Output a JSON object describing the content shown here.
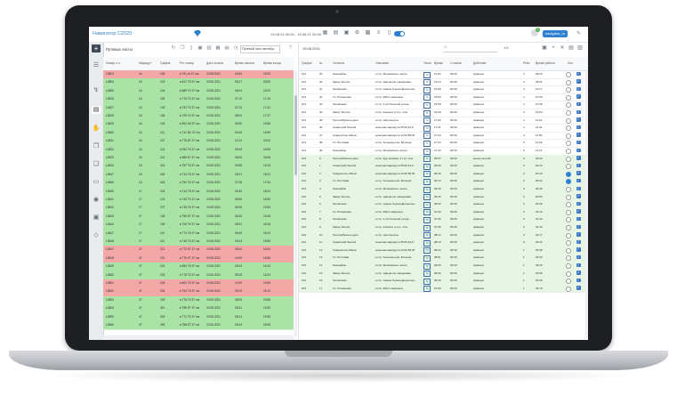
{
  "app": {
    "title": "Навигатор С2020",
    "dates": "19.08.21 00:00 - 19.08.21 00:00",
    "user": "navigator_ru",
    "notification_count": "3"
  },
  "left_panel": {
    "title": "Путевые листы",
    "route_select": "Путевой лист автобус",
    "columns": [
      "Номер п.л.",
      "Маршрут",
      "График",
      "Рег. номер",
      "Дата начала",
      "Время начала",
      "Время конца"
    ],
    "rows": [
      {
        "c": [
          "L0823",
          "16",
          "105",
          "в 791 хк 37 rus",
          "19.08.2021",
          "04:54",
          "15:29"
        ],
        "s": "r"
      },
      {
        "c": [
          "L0854",
          "16",
          "103",
          "в 817 ТК 37 rus",
          "19.08.2021",
          "06:27",
          "09:52"
        ],
        "s": "g"
      },
      {
        "c": [
          "L0865",
          "16",
          "104",
          "в 689 ТК 37 rus",
          "19.08.2021",
          "06:04",
          "15:29"
        ],
        "s": "g"
      },
      {
        "c": [
          "L0826",
          "16",
          "105",
          "в 776 ТК 37 rus",
          "19.08.2021",
          "07:12",
          "17:16"
        ],
        "s": "g"
      },
      {
        "c": [
          "L0827",
          "16",
          "106",
          "в 751 ТК 37 rus",
          "19.08.2021",
          "07:23",
          "17:41"
        ],
        "s": "g"
      },
      {
        "c": [
          "L0828",
          "16",
          "108",
          "в 709 ТК 37 rus",
          "19.08.2021",
          "08:00",
          "17:37"
        ],
        "s": "g"
      },
      {
        "c": [
          "L0829",
          "16",
          "109",
          "в 803 ХК 37 rus",
          "19.08.2021",
          "05:50",
          "15:58"
        ],
        "s": "g"
      },
      {
        "c": [
          "L0850",
          "16",
          "111",
          "в 741 ВС 37 rus",
          "19.08.2021",
          "03:49",
          "15:59"
        ],
        "s": "g"
      },
      {
        "c": [
          "L0831",
          "16",
          "112",
          "в 776 АТ 37 rus",
          "19.08.2021",
          "11:24",
          "22:00"
        ],
        "s": "g"
      },
      {
        "c": [
          "L0832",
          "16",
          "113",
          "в 934 ТК 37 rus",
          "19.08.2021",
          "05:43",
          "15:45"
        ],
        "s": "g"
      },
      {
        "c": [
          "L0833",
          "16",
          "114",
          "в 865 КТ 37 rus",
          "19.08.2021",
          "06:06",
          "16:06"
        ],
        "s": "g"
      },
      {
        "c": [
          "L0844",
          "16",
          "401",
          "в 787 ТК 37 rus",
          "19.08.2021",
          "05:58",
          "15:15"
        ],
        "s": "g"
      },
      {
        "c": [
          "L0847",
          "16",
          "402",
          "в 734 ТК 37 rus",
          "19.08.2021",
          "05:21",
          "15:21"
        ],
        "s": "g"
      },
      {
        "c": [
          "L0856",
          "16",
          "403",
          "в 781 ТК 37 rus",
          "19.08.2021",
          "07:45",
          "17:54"
        ],
        "s": "g"
      },
      {
        "c": [
          "L0840",
          "17",
          "103",
          "в 714 ТК 37 rus",
          "19.08.2021",
          "06:40",
          "16:34"
        ],
        "s": "g"
      },
      {
        "c": [
          "L0841",
          "17",
          "104",
          "в 745 ТК 37 rus",
          "19.08.2021",
          "05:53",
          "15:53"
        ],
        "s": "g"
      },
      {
        "c": [
          "L0842",
          "17",
          "107",
          "в 745 ТК 37 rus",
          "19.08.2021",
          "05:35",
          "15:35"
        ],
        "s": "g"
      },
      {
        "c": [
          "L0843",
          "17",
          "108",
          "в 755 КТ 37 rus",
          "19.08.2021",
          "05:45",
          "15:45"
        ],
        "s": "g"
      },
      {
        "c": [
          "L0844",
          "17",
          "109",
          "в 706 ТК 37 rus",
          "19.08.2021",
          "05:22",
          "16:16"
        ],
        "s": "g"
      },
      {
        "c": [
          "L0847",
          "17",
          "110",
          "в 774 ТК 37 rus",
          "19.08.2021",
          "06:49",
          "16:19"
        ],
        "s": "g"
      },
      {
        "c": [
          "L0848",
          "17",
          "111",
          "в 745 ТК 37 rus",
          "19.08.2021",
          "05:34",
          "15:58"
        ],
        "s": "g"
      },
      {
        "c": [
          "L0847",
          "37",
          "201",
          "в 772 КТ 37 rus",
          "19.08.2021",
          "05:44",
          "15:44"
        ],
        "s": "r"
      },
      {
        "c": [
          "L0848",
          "37",
          "201",
          "в 776 КТ 37 rus",
          "19.08.2021",
          "14:09",
          "15:55"
        ],
        "s": "r"
      },
      {
        "c": [
          "L0849",
          "37",
          "202",
          "в 694 ТК 37 rus",
          "19.08.2021",
          "05:44",
          "16:43"
        ],
        "s": "g"
      },
      {
        "c": [
          "L0850",
          "37",
          "203",
          "в 778 ТК 37 rus",
          "19.08.2021",
          "05:29",
          "16:29"
        ],
        "s": "g"
      },
      {
        "c": [
          "L0851",
          "47",
          "203",
          "в 800 ТК 37 rus",
          "19.08.2021",
          "14:09",
          "15:55"
        ],
        "s": "r"
      },
      {
        "c": [
          "L0852",
          "47",
          "204",
          "в 754 ТК 37 rus",
          "19.08.2021",
          "05:29",
          "16:10"
        ],
        "s": "r"
      },
      {
        "c": [
          "L0853",
          "47",
          "205",
          "в 776 ТК 37 rus",
          "19.08.2021",
          "05:08",
          "15:55"
        ],
        "s": "g"
      },
      {
        "c": [
          "L0854",
          "47",
          "310",
          "в 785 КТ 37 rus",
          "19.08.2021",
          "05:31",
          "14:55"
        ],
        "s": "g"
      },
      {
        "c": [
          "L0855",
          "47",
          "303",
          "в 771 ТК 37 rus",
          "19.08.2021",
          "06:14",
          "15:35"
        ],
        "s": "g"
      },
      {
        "c": [
          "L0856",
          "47",
          "305",
          "в 768 КТ 37 rus",
          "19.08.2021",
          "05:43",
          "16:08"
        ],
        "s": "g"
      }
    ]
  },
  "right_panel": {
    "date": "19.08.2021",
    "search_placeholder": "ID",
    "pager": "1/4",
    "columns": [
      "График",
      "№",
      "Останов",
      "Описание",
      "Точка",
      "Время",
      "Стоянка",
      "Действие",
      "Рейс",
      "Время работы",
      "Кон"
    ],
    "rows": [
      {
        "c": [
          "101",
          "39",
          "Никорайон",
          "в стр. Московского шоссе",
          "ТК",
          "11:20",
          "00:00",
          "разворот",
          "4",
          "09:29"
        ],
        "g": false,
        "ck": true
      },
      {
        "c": [
          "101",
          "40",
          "Завод Теплиц",
          "в стр. завода им. Невдовова",
          "ТК",
          "12:13",
          "00:00",
          "разворот",
          "4",
          "09:51"
        ],
        "g": false,
        "ck": true
      },
      {
        "c": [
          "101",
          "41",
          "Автовокзал",
          "в стр. сквера Героев Десантных",
          "ТК",
          "12:59",
          "00:00",
          "разворот",
          "4",
          "10:17"
        ],
        "g": false,
        "ck": true
      },
      {
        "c": [
          "101",
          "42",
          "Ул. Планерная",
          "в стр. 909-го квартала",
          "ТК",
          "15:54",
          "00:00",
          "разворот",
          "4",
          "10:39"
        ],
        "g": false,
        "ck": true
      },
      {
        "c": [
          "101",
          "43",
          "Автовокзал",
          "в стр. 1-ой Угольной улицы",
          "ТК",
          "15:58",
          "00:00",
          "разворот",
          "4",
          "10:48"
        ],
        "g": false,
        "ck": true
      },
      {
        "c": [
          "101",
          "44",
          "Завод Теплиц",
          "в стр. вокзала, в стр. гиль",
          "ТК",
          "16:49",
          "00:00",
          "разворот",
          "4",
          "10:53"
        ],
        "g": false,
        "ck": true
      },
      {
        "c": [
          "101",
          "45",
          "Троллейбусное депо",
          "в стр. Неполнорты",
          "ТК",
          "17:02",
          "00:00",
          "разворот",
          "4",
          "11:21"
        ],
        "g": false,
        "ck": true
      },
      {
        "c": [
          "101",
          "46",
          "Санаторий Лесной",
          "конечная маршрута 55,55,44,9",
          "ТК",
          "17:21",
          "00:00",
          "разворот",
          "4",
          "11:43"
        ],
        "g": false,
        "ck": true
      },
      {
        "c": [
          "101",
          "47",
          "Северостан.-Магис",
          "конечная маршрута 14,52,58,45",
          "ТК",
          "17:04",
          "00:00",
          "разворот",
          "4",
          "11:50"
        ],
        "g": false,
        "ck": true
      },
      {
        "c": [
          "101",
          "48",
          "Ул. Почтовая",
          "в стр. больницы им. Ботнина",
          "ТК",
          "17:34",
          "00:00",
          "разворот",
          "5",
          "12:02"
        ],
        "g": false,
        "ck": true
      },
      {
        "c": [
          "101",
          "49",
          "Никорайон",
          "в стр. Московского шоссе",
          "ТК",
          "17:43",
          "00:00",
          "разворот",
          "5",
          "13:11"
        ],
        "g": false,
        "ck": true
      },
      {
        "c": [
          "102",
          "0",
          "Троллейбусное депо",
          "в стр. 3(д) вокзала, в стр. гиль",
          "ТК",
          "05:57",
          "00:00",
          "выезд на рейс",
          "0",
          "00:00"
        ],
        "g": true,
        "ck": true
      },
      {
        "c": [
          "102",
          "1",
          "Санаторий Лесной",
          "конечная маршрута 55,55,44,9",
          "ТК",
          "06:09",
          "00:00",
          "разворот",
          "0",
          "00:16"
        ],
        "g": true,
        "ck": true
      },
      {
        "c": [
          "102",
          "2",
          "Северостан.-Магис",
          "конечная маршрута 14,52,58,45",
          "ТК",
          "06:09",
          "00:00",
          "разворот",
          "0",
          "00:16"
        ],
        "g": true,
        "ck": true
      },
      {
        "c": [
          "102",
          "3",
          "Ул. Почтовая",
          "в стр. больницы им. Ботнина",
          "ТК",
          "06:13",
          "00:00",
          "разворот",
          "0",
          "00:24"
        ],
        "g": true,
        "ck": true
      },
      {
        "c": [
          "102",
          "4",
          "Никорайон",
          "в стр. Московского шоссе",
          "ТК",
          "06:20",
          "00:00",
          "разворот",
          "0",
          "00:36"
        ],
        "g": true,
        "ck": true
      },
      {
        "c": [
          "102",
          "5",
          "Завод Теплиц",
          "в стр. завода им. Невдовова",
          "ТК",
          "06:26",
          "00:00",
          "разворот",
          "0",
          "00:54"
        ],
        "g": true,
        "ck": true
      },
      {
        "c": [
          "102",
          "6",
          "Автовокзал",
          "в стр. сквера Героев Десантных",
          "ТК",
          "06:53",
          "00:00",
          "разворот",
          "0",
          "01:06"
        ],
        "g": true,
        "ck": true
      },
      {
        "c": [
          "102",
          "7",
          "Ул. Планерная",
          "в стр. 909-го квартала",
          "ТК",
          "07:00",
          "00:00",
          "разворот",
          "0",
          "01:16"
        ],
        "g": true,
        "ck": true
      },
      {
        "c": [
          "102",
          "8",
          "Автовокзал",
          "в стр. 1-ой Угольной улицы",
          "ТК",
          "07:26",
          "00:00",
          "разворот",
          "0",
          "01:34"
        ],
        "g": true,
        "ck": true
      },
      {
        "c": [
          "102",
          "9",
          "Завод Теплиц",
          "в стр. вокзала, в стр. гиль",
          "ТК",
          "07:35",
          "00:00",
          "разворот",
          "0",
          "01:44"
        ],
        "g": true,
        "ck": true
      },
      {
        "c": [
          "102",
          "10",
          "Троллейбусное депо",
          "в стр. Неполнорты",
          "ТК",
          "08:14",
          "00:00",
          "разворот",
          "0",
          "02:17"
        ],
        "g": true,
        "ck": true
      },
      {
        "c": [
          "102",
          "11",
          "Санаторий Лесной",
          "конечная маршрута 55,55,44,9",
          "ТК",
          "08:19",
          "00:00",
          "разворот",
          "0",
          "02:26"
        ],
        "g": true,
        "ck": true
      },
      {
        "c": [
          "102",
          "12",
          "Северостан.-Магис",
          "конечная маршрута 14,52,58,45",
          "ТК",
          "08:24",
          "00:00",
          "разворот",
          "1",
          "02:38"
        ],
        "g": true,
        "ck": true
      },
      {
        "c": [
          "102",
          "13",
          "Ул. Почтовая",
          "в стр. больницы им. Ботнина",
          "ТК",
          "08:51",
          "00:00",
          "разворот",
          "1",
          "03:04"
        ],
        "g": true,
        "ck": true
      },
      {
        "c": [
          "102",
          "14",
          "Никорайон",
          "в стр. Московского шоссе",
          "ТК",
          "09:05",
          "00:00",
          "разворот",
          "1",
          "03:26"
        ],
        "g": true,
        "ck": true
      },
      {
        "c": [
          "102",
          "15",
          "Завод Теплиц",
          "в стр. завода им. Невдовова",
          "ТК",
          "09:26",
          "00:00",
          "разворот",
          "1",
          "03:56"
        ],
        "g": true,
        "ck": true
      },
      {
        "c": [
          "102",
          "16",
          "Автовокзал",
          "в стр. сквера Героев Десантных",
          "ТК",
          "09:40",
          "00:00",
          "разворот",
          "1",
          "04:00"
        ],
        "g": true,
        "ck": true
      },
      {
        "c": [
          "102",
          "17",
          "Ул. Планерная",
          "в стр. 909-го квартала",
          "ТК",
          "10:05",
          "00:00",
          "разворот",
          "1",
          "04:19"
        ],
        "g": true,
        "ck": true
      }
    ]
  }
}
